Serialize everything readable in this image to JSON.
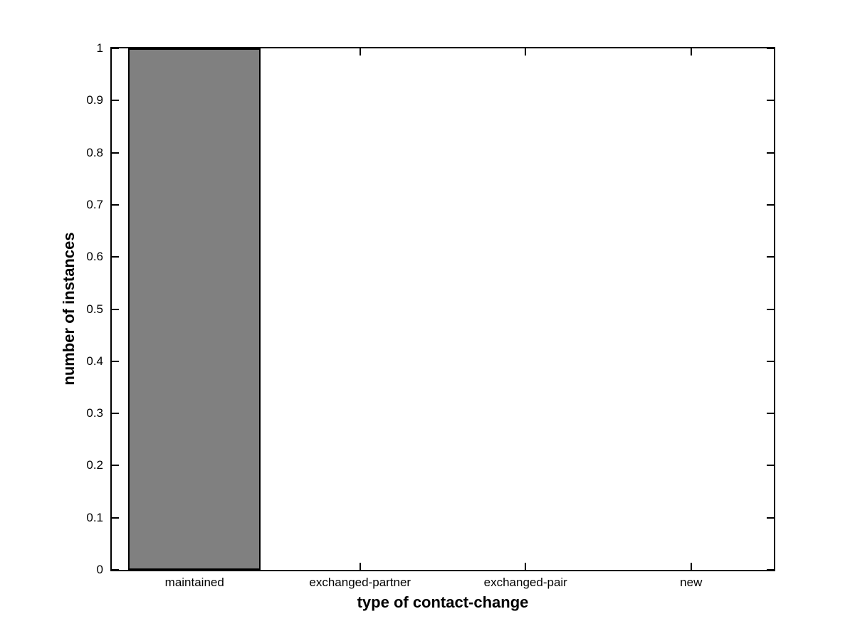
{
  "figure": {
    "background_color": "#ffffff",
    "axis_color": "#000000",
    "text_color": "#000000"
  },
  "chart_data": {
    "type": "bar",
    "title": "",
    "xlabel": "type of contact-change",
    "ylabel": "number of instances",
    "categories": [
      "maintained",
      "exchanged-partner",
      "exchanged-pair",
      "new"
    ],
    "values": [
      1,
      0,
      0,
      0
    ],
    "ylim": [
      0,
      1
    ],
    "yticks": [
      0,
      0.1,
      0.2,
      0.3,
      0.4,
      0.5,
      0.6,
      0.7,
      0.8,
      0.9,
      1
    ],
    "ytick_labels": [
      "0",
      "0.1",
      "0.2",
      "0.3",
      "0.4",
      "0.5",
      "0.6",
      "0.7",
      "0.8",
      "0.9",
      "1"
    ],
    "bar_width_fraction": 0.8,
    "bar_color": "#808080",
    "bar_edge_color": "#000000",
    "grid": false,
    "legend": null,
    "box": true,
    "tick_direction": "in"
  }
}
